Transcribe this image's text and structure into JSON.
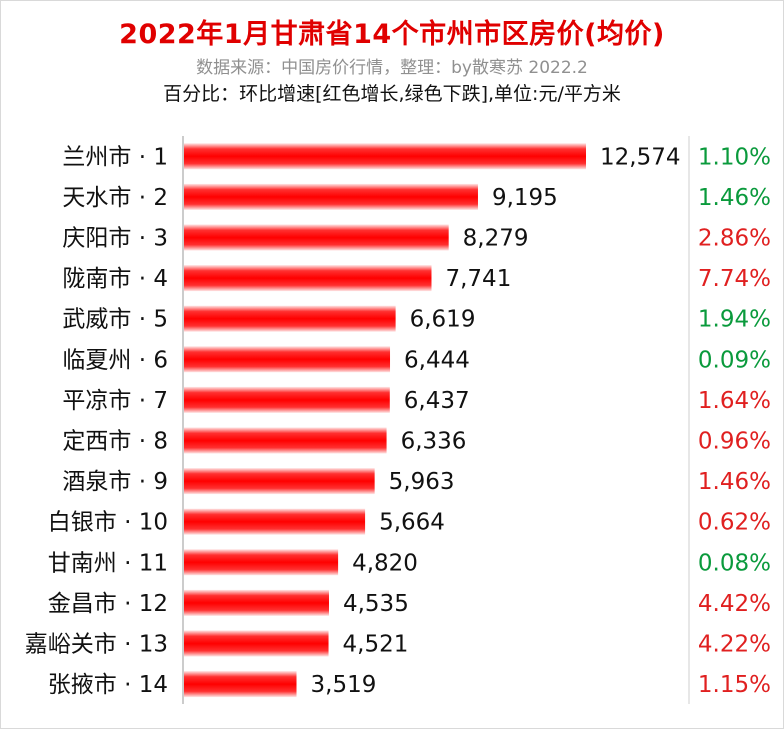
{
  "title": "2022年1月甘肃省14个市州市区房价(均价)",
  "subtitle": "数据来源：中国房价行情，整理：by散寒苏  2022.2",
  "note": "百分比：环比增速[红色增长,绿色下跌],单位:元/平方米",
  "colors": {
    "bar": "#ff1a1a",
    "up": "#e02020",
    "down": "#0a9a3c"
  },
  "chart_data": {
    "type": "bar",
    "orientation": "horizontal",
    "categories": [
      "兰州市 · 1",
      "天水市 · 2",
      "庆阳市 · 3",
      "陇南市 · 4",
      "武威市 · 5",
      "临夏州 · 6",
      "平凉市 · 7",
      "定西市 · 8",
      "酒泉市 · 9",
      "白银市 · 10",
      "甘南州 · 11",
      "金昌市 · 12",
      "嘉峪关市 · 13",
      "张掖市 · 14"
    ],
    "values": [
      12574,
      9195,
      8279,
      7741,
      6619,
      6444,
      6437,
      6336,
      5963,
      5664,
      4820,
      4535,
      4521,
      3519
    ],
    "value_labels": [
      "12,574",
      "9,195",
      "8,279",
      "7,741",
      "6,619",
      "6,444",
      "6,437",
      "6,336",
      "5,963",
      "5,664",
      "4,820",
      "4,535",
      "4,521",
      "3,519"
    ],
    "growth_labels": [
      "1.10%",
      "1.46%",
      "2.86%",
      "7.74%",
      "1.94%",
      "0.09%",
      "1.64%",
      "0.96%",
      "1.46%",
      "0.62%",
      "0.08%",
      "4.42%",
      "4.22%",
      "1.15%"
    ],
    "growth_direction": [
      "down",
      "down",
      "up",
      "up",
      "down",
      "down",
      "up",
      "up",
      "up",
      "up",
      "down",
      "up",
      "up",
      "up"
    ],
    "xlim": [
      0,
      12574
    ],
    "grid": false,
    "legend": "none"
  }
}
